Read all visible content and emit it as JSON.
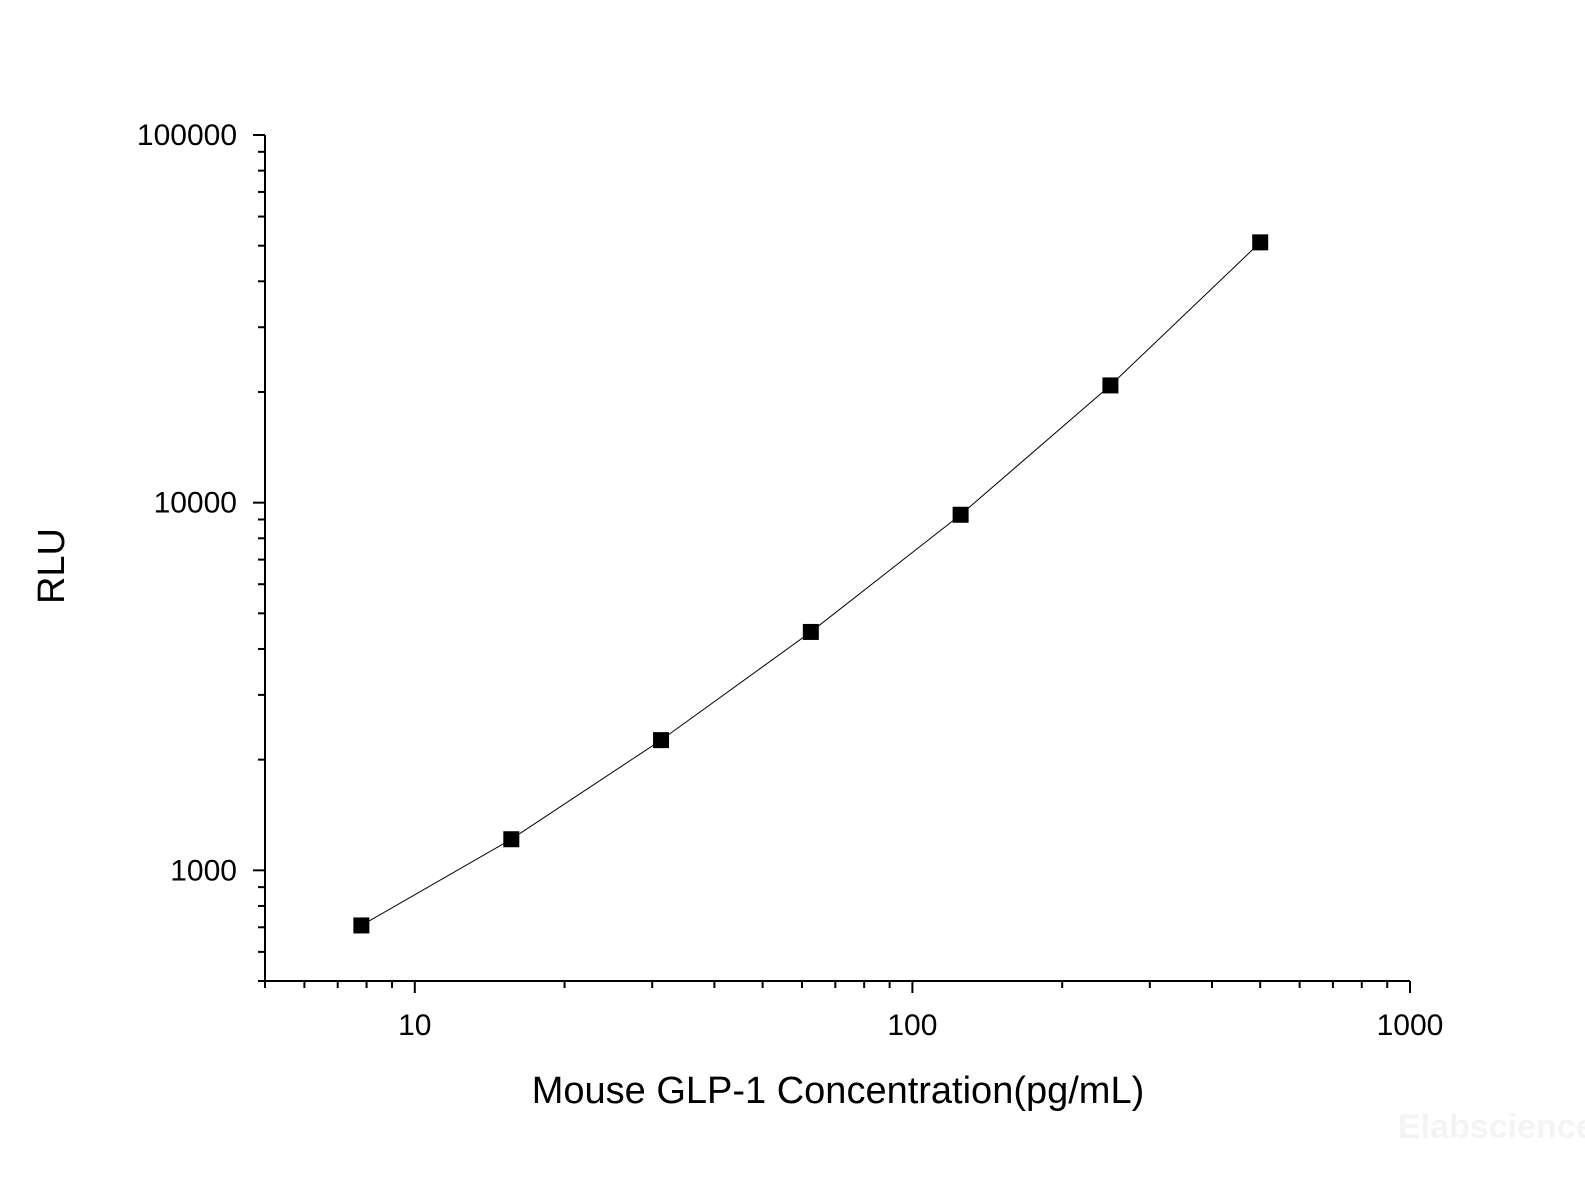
{
  "chart_data": {
    "type": "line",
    "title": "",
    "xlabel": "Mouse GLP-1 Concentration(pg/mL)",
    "ylabel": "RLU",
    "xscale": "log",
    "yscale": "log",
    "xlim": [
      5,
      1000
    ],
    "ylim": [
      500,
      100000
    ],
    "x_ticks": [
      "10",
      "100",
      "1000"
    ],
    "y_ticks": [
      "1000",
      "10000",
      "100000"
    ],
    "grid": false,
    "marker": "square",
    "series": [
      {
        "x": [
          7.81,
          15.63,
          31.25,
          62.5,
          125,
          250,
          500
        ],
        "y": [
          708,
          1215,
          2260,
          4450,
          9270,
          20840,
          51050
        ]
      }
    ],
    "line_color": "#000000",
    "marker_color": "#000000"
  },
  "watermark": "Elabscience"
}
